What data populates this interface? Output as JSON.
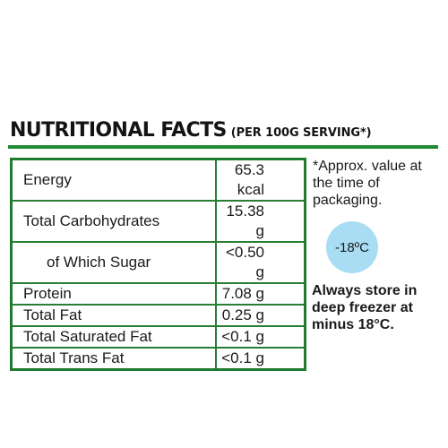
{
  "title": {
    "main": "NUTRITIONAL FACTS",
    "sub": "(PER 100G SERVING*)"
  },
  "rows": [
    {
      "label": "Energy",
      "value": "65.3 kcal"
    },
    {
      "label": "Total Carbohydrates",
      "value": "15.38 g"
    },
    {
      "label": "of Which Sugar",
      "value": "<0.50 g"
    },
    {
      "label": "Protein",
      "value": "7.08 g"
    },
    {
      "label": "Total Fat",
      "value": "0.25 g"
    },
    {
      "label": "Total Saturated Fat",
      "value": "<0.1 g"
    },
    {
      "label": "Total Trans Fat",
      "value": "<0.1 g"
    }
  ],
  "note": "*Approx. value at the time of packaging.",
  "temperature_badge": "-18ºC",
  "storage": "Always store in deep freezer at minus 18°C.",
  "colors": {
    "accent_green": "#1e8a33",
    "badge_blue": "#a9ddf3"
  }
}
